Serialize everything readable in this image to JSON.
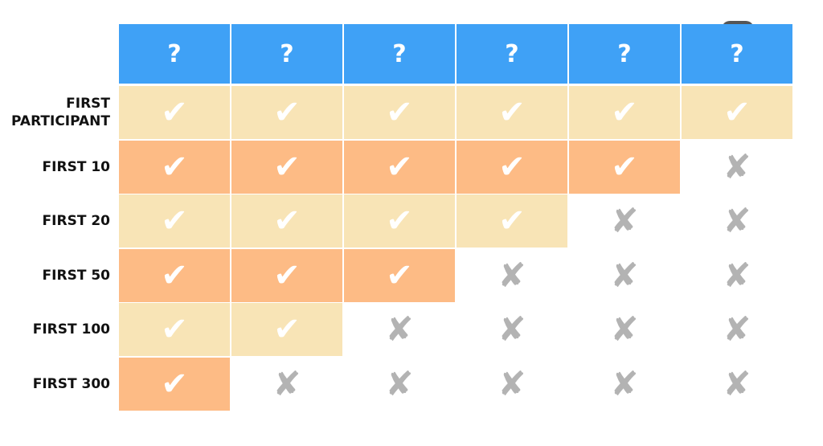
{
  "colors": {
    "header": "#3fa1f6",
    "row_light": "#f8e4b6",
    "row_dark": "#fdbb85",
    "cross": "#b3b3b3",
    "check": "#ffffff"
  },
  "icons": {
    "check": "checkmark-icon",
    "cross": "cross-icon"
  },
  "header": [
    "?",
    "?",
    "?",
    "?",
    "?",
    "?"
  ],
  "rows": [
    {
      "label": "FIRST\nPARTICIPANT",
      "cells": [
        "check",
        "check",
        "check",
        "check",
        "check",
        "check"
      ]
    },
    {
      "label": "FIRST 10",
      "cells": [
        "check",
        "check",
        "check",
        "check",
        "check",
        "cross"
      ]
    },
    {
      "label": "FIRST 20",
      "cells": [
        "check",
        "check",
        "check",
        "check",
        "cross",
        "cross"
      ]
    },
    {
      "label": "FIRST 50",
      "cells": [
        "check",
        "check",
        "check",
        "cross",
        "cross",
        "cross"
      ]
    },
    {
      "label": "FIRST 100",
      "cells": [
        "check",
        "check",
        "cross",
        "cross",
        "cross",
        "cross"
      ]
    },
    {
      "label": "FIRST 300",
      "cells": [
        "check",
        "cross",
        "cross",
        "cross",
        "cross",
        "cross"
      ]
    }
  ]
}
